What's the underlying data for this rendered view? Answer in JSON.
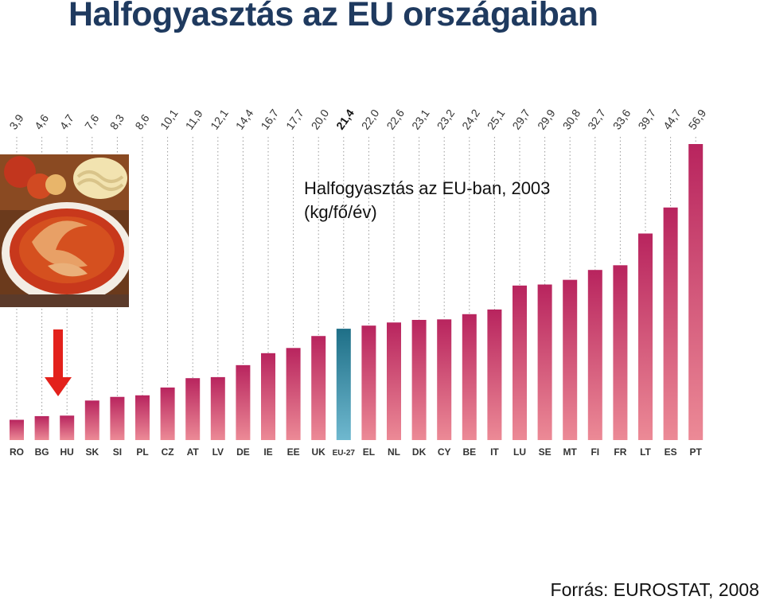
{
  "page": {
    "title": "Halfogyasztás az EU országaiban",
    "source": "Forrás: EUROSTAT, 2008"
  },
  "chart_data": {
    "type": "bar",
    "title_lines": [
      "Halfogyasztás az EU-ban, 2003",
      "(kg/fő/év)"
    ],
    "unit": "kg/fő/év",
    "categories": [
      "RO",
      "BG",
      "HU",
      "SK",
      "SI",
      "PL",
      "CZ",
      "AT",
      "LV",
      "DE",
      "IE",
      "EE",
      "UK",
      "EU-27",
      "EL",
      "NL",
      "DK",
      "CY",
      "BE",
      "IT",
      "LU",
      "SE",
      "MT",
      "FI",
      "FR",
      "LT",
      "ES",
      "PT"
    ],
    "values": [
      3.9,
      4.6,
      4.7,
      7.6,
      8.3,
      8.6,
      10.1,
      11.9,
      12.1,
      14.4,
      16.7,
      17.7,
      20.0,
      21.4,
      22.0,
      22.6,
      23.1,
      23.2,
      24.2,
      25.1,
      29.7,
      29.9,
      30.8,
      32.7,
      33.6,
      39.7,
      44.7,
      56.9
    ],
    "value_labels": [
      "3,9",
      "4,6",
      "4,7",
      "7,6",
      "8,3",
      "8,6",
      "10,1",
      "11,9",
      "12,1",
      "14,4",
      "16,7",
      "17,7",
      "20,0",
      "21,4",
      "22,0",
      "22,6",
      "23,1",
      "23,2",
      "24,2",
      "25,1",
      "29,7",
      "29,9",
      "30,8",
      "32,7",
      "33,6",
      "39,7",
      "44,7",
      "56,9"
    ],
    "highlight_category": "EU-27",
    "marked_category": "HU",
    "ylim": [
      0,
      56.9
    ],
    "grid": "vertical-dotted",
    "colors": {
      "bar_top": "#b8245e",
      "bar_bottom": "#ec8a96",
      "highlight_top": "#1e6f87",
      "highlight_bottom": "#6fb8cf",
      "arrow": "#e3211b",
      "title": "#1f3a5f"
    }
  },
  "images": {
    "food_photo": "fish-soup-photo",
    "arrow": "down-arrow-icon"
  }
}
